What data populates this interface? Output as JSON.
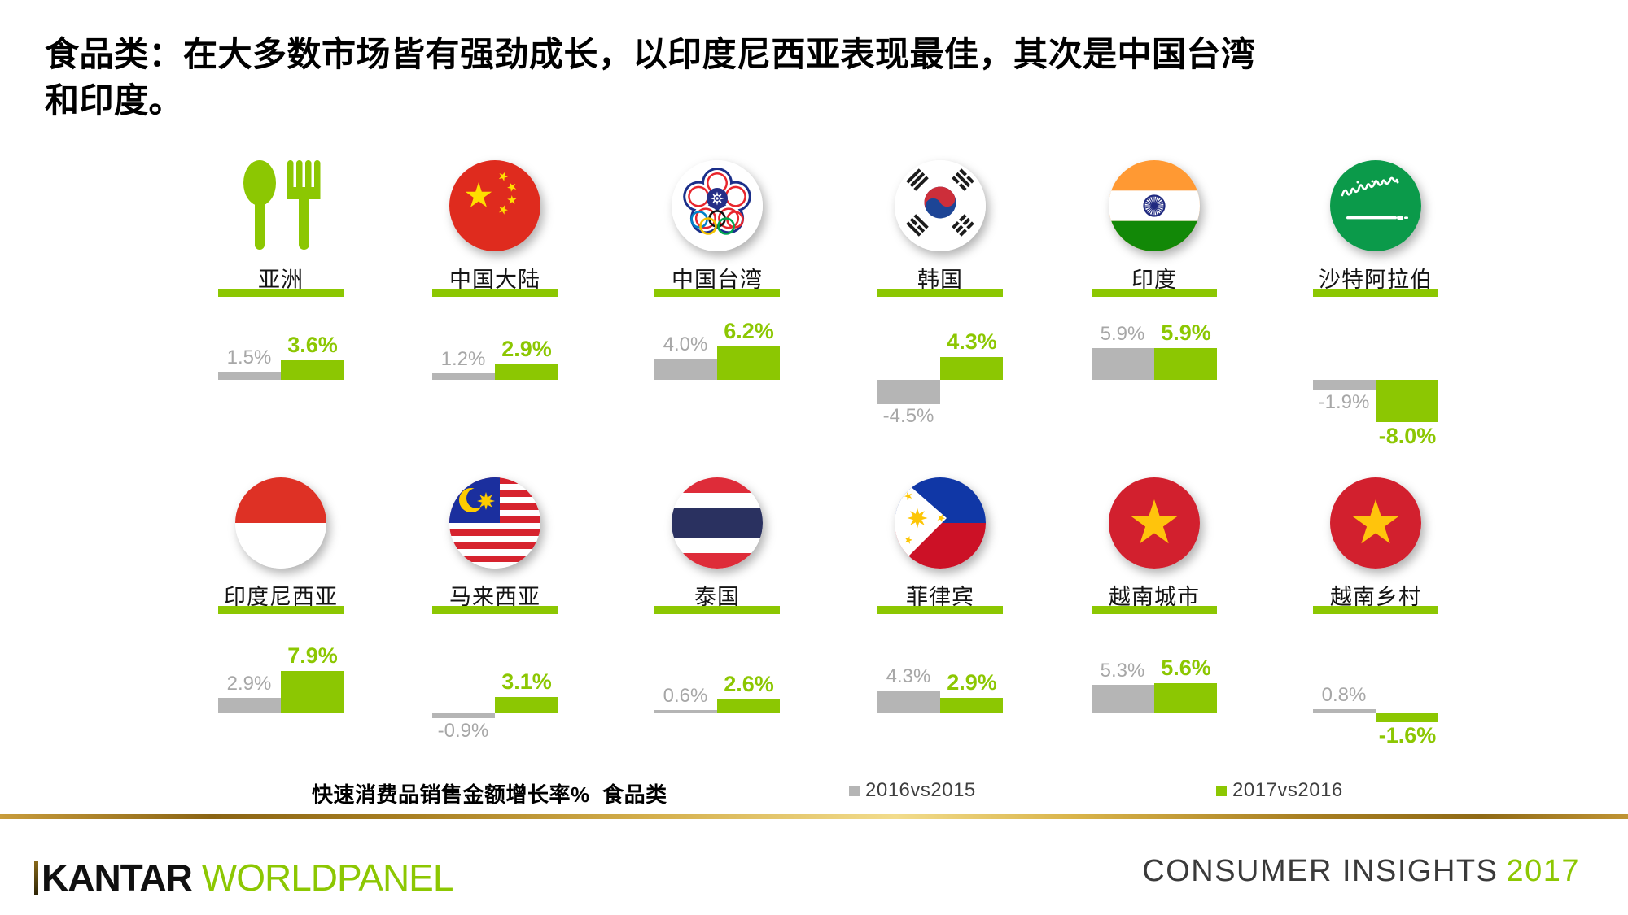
{
  "title": {
    "line1": "食品类：在大多数市场皆有强劲成长，以印度尼西亚表现最佳，其次是中国台湾",
    "line2": "和印度。"
  },
  "chart_data": {
    "type": "bar",
    "title": "快速消费品销售金额增长率%  食品类",
    "unit": "%",
    "series": [
      {
        "name": "2016vs2015",
        "color": "#B5B5B5"
      },
      {
        "name": "2017vs2016",
        "color": "#8CC702"
      }
    ],
    "markets": [
      {
        "key": "asia",
        "name": "亚洲",
        "icon": "cutlery-icon",
        "values": [
          1.5,
          3.6
        ],
        "labels": [
          "1.5%",
          "3.6%"
        ]
      },
      {
        "key": "china-mainland",
        "name": "中国大陆",
        "icon": "china-flag",
        "values": [
          1.2,
          2.9
        ],
        "labels": [
          "1.2%",
          "2.9%"
        ]
      },
      {
        "key": "taiwan",
        "name": "中国台湾",
        "icon": "chinese-taipei-flag",
        "values": [
          4.0,
          6.2
        ],
        "labels": [
          "4.0%",
          "6.2%"
        ]
      },
      {
        "key": "south-korea",
        "name": "韩国",
        "icon": "south-korea-flag",
        "values": [
          -4.5,
          4.3
        ],
        "labels": [
          "-4.5%",
          "4.3%"
        ]
      },
      {
        "key": "india",
        "name": "印度",
        "icon": "india-flag",
        "values": [
          5.9,
          5.9
        ],
        "labels": [
          "5.9%",
          "5.9%"
        ]
      },
      {
        "key": "saudi-arabia",
        "name": "沙特阿拉伯",
        "icon": "saudi-arabia-flag",
        "values": [
          -1.9,
          -8.0
        ],
        "labels": [
          "-1.9%",
          "-8.0%"
        ]
      },
      {
        "key": "indonesia",
        "name": "印度尼西亚",
        "icon": "indonesia-flag",
        "values": [
          2.9,
          7.9
        ],
        "labels": [
          "2.9%",
          "7.9%"
        ]
      },
      {
        "key": "malaysia",
        "name": "马来西亚",
        "icon": "malaysia-flag",
        "values": [
          -0.9,
          3.1
        ],
        "labels": [
          "-0.9%",
          "3.1%"
        ]
      },
      {
        "key": "thailand",
        "name": "泰国",
        "icon": "thailand-flag",
        "values": [
          0.6,
          2.6
        ],
        "labels": [
          "0.6%",
          "2.6%"
        ]
      },
      {
        "key": "philippines",
        "name": "菲律宾",
        "icon": "philippines-flag",
        "values": [
          4.3,
          2.9
        ],
        "labels": [
          "4.3%",
          "2.9%"
        ]
      },
      {
        "key": "vietnam-urban",
        "name": "越南城市",
        "icon": "vietnam-flag",
        "values": [
          5.3,
          5.6
        ],
        "labels": [
          "5.3%",
          "5.6%"
        ]
      },
      {
        "key": "vietnam-rural",
        "name": "越南乡村",
        "icon": "vietnam-flag",
        "values": [
          0.8,
          -1.6
        ],
        "labels": [
          "0.8%",
          "-1.6%"
        ]
      }
    ]
  },
  "legend": {
    "note": "快速消费品销售金额增长率%  食品类",
    "items": [
      {
        "label": "2016vs2015",
        "color": "#B5B5B5"
      },
      {
        "label": "2017vs2016",
        "color": "#8CC702"
      }
    ]
  },
  "footer": {
    "brand_black": "KANTAR",
    "brand_green": "WORLDPANEL",
    "right_text": "CONSUMER INSIGHTS",
    "right_year": "2017"
  }
}
